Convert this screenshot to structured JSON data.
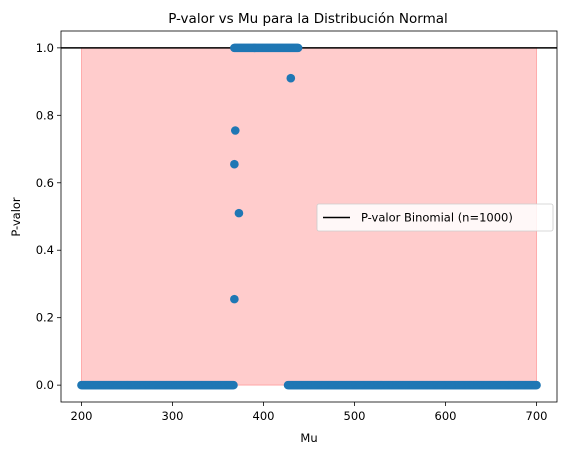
{
  "chart_data": {
    "type": "scatter",
    "title": "P-valor vs Mu para la Distribución Normal",
    "xlabel": "Mu",
    "ylabel": "P-valor",
    "xlim": [
      177.5,
      722.5
    ],
    "ylim": [
      -0.05,
      1.05
    ],
    "x_ticks": [
      200,
      300,
      400,
      500,
      600,
      700
    ],
    "y_ticks": [
      0.0,
      0.2,
      0.4,
      0.6,
      0.8,
      1.0
    ],
    "grid": false,
    "legend": {
      "position": "center-right",
      "entries": [
        "P-valor Binomial (n=1000)"
      ]
    },
    "reference_line": {
      "name": "P-valor Binomial (n=1000)",
      "y": 1.0,
      "color": "#000000"
    },
    "shaded_region": {
      "x": [
        200,
        700
      ],
      "y": [
        0,
        1
      ],
      "color": "#ff0000",
      "opacity": 0.2
    },
    "series": [
      {
        "color": "#1f77b4",
        "segments": [
          {
            "x_start": 200,
            "x_end": 367,
            "step": 1,
            "y": 0.0
          },
          {
            "x_start": 368,
            "x_end": 438,
            "step": 1,
            "y": 1.0
          },
          {
            "x_start": 427,
            "x_end": 700,
            "step": 1,
            "y": 0.0
          }
        ],
        "points": [
          {
            "x": 368,
            "y": 0.255
          },
          {
            "x": 368,
            "y": 0.655
          },
          {
            "x": 369,
            "y": 0.755
          },
          {
            "x": 373,
            "y": 0.51
          },
          {
            "x": 430,
            "y": 0.91
          }
        ]
      }
    ]
  }
}
